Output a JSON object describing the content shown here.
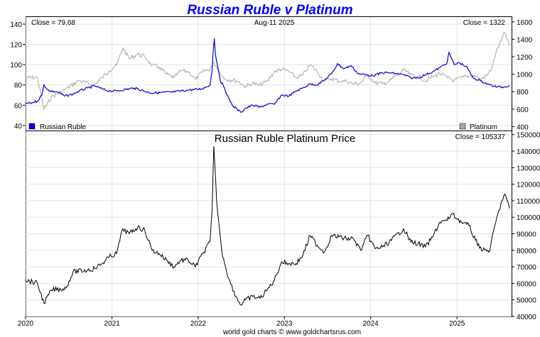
{
  "title": "Russian Ruble v Platinum",
  "footer": "world gold charts © www.goldchartsrus.com",
  "colors": {
    "ruble": "#0000dd",
    "platinum": "#a8a8a8",
    "price": "#000000",
    "title": "#0000ff",
    "grid": "#e2e2e2"
  },
  "chart_data": [
    {
      "type": "line",
      "title": "Russian Ruble v Platinum",
      "header": {
        "left": "Close = 79.68",
        "center": "Aug-11  2025",
        "right": "Close = 1322"
      },
      "x_ticks": [
        "2020",
        "2021",
        "2022",
        "2023",
        "2024",
        "2025"
      ],
      "y_left": {
        "ticks": [
          40,
          60,
          80,
          100,
          120,
          140
        ],
        "lim": [
          35,
          147
        ]
      },
      "y_right": {
        "ticks": [
          400,
          600,
          800,
          1000,
          1200,
          1400,
          1600
        ],
        "lim": [
          355,
          1655
        ]
      },
      "legend": "bottom-left and bottom-right",
      "grid": true,
      "series": [
        {
          "name": "Russian Ruble",
          "axis": "left",
          "points": [
            [
              "2020-01-01",
              62
            ],
            [
              "2020-01-20",
              62
            ],
            [
              "2020-02-20",
              64
            ],
            [
              "2020-03-10",
              70
            ],
            [
              "2020-03-19",
              80
            ],
            [
              "2020-04-10",
              74
            ],
            [
              "2020-05-15",
              73
            ],
            [
              "2020-06-15",
              69
            ],
            [
              "2020-07-20",
              71
            ],
            [
              "2020-08-15",
              74
            ],
            [
              "2020-09-20",
              77
            ],
            [
              "2020-10-20",
              79
            ],
            [
              "2020-11-20",
              76
            ],
            [
              "2020-12-20",
              74
            ],
            [
              "2021-01-20",
              74
            ],
            [
              "2021-04-05",
              77
            ],
            [
              "2021-06-15",
              72
            ],
            [
              "2021-09-15",
              73
            ],
            [
              "2021-11-25",
              75
            ],
            [
              "2022-01-15",
              76
            ],
            [
              "2022-02-20",
              80
            ],
            [
              "2022-03-01",
              95
            ],
            [
              "2022-03-05",
              112
            ],
            [
              "2022-03-10",
              126
            ],
            [
              "2022-03-15",
              110
            ],
            [
              "2022-03-25",
              98
            ],
            [
              "2022-04-05",
              84
            ],
            [
              "2022-04-20",
              78
            ],
            [
              "2022-05-10",
              67
            ],
            [
              "2022-05-25",
              60
            ],
            [
              "2022-06-15",
              56
            ],
            [
              "2022-06-30",
              53
            ],
            [
              "2022-07-20",
              57
            ],
            [
              "2022-08-20",
              60
            ],
            [
              "2022-09-20",
              58
            ],
            [
              "2022-10-20",
              61
            ],
            [
              "2022-11-20",
              61
            ],
            [
              "2022-12-20",
              70
            ],
            [
              "2023-01-20",
              69
            ],
            [
              "2023-02-20",
              74
            ],
            [
              "2023-03-20",
              77
            ],
            [
              "2023-04-20",
              81
            ],
            [
              "2023-05-20",
              80
            ],
            [
              "2023-06-20",
              85
            ],
            [
              "2023-07-20",
              91
            ],
            [
              "2023-08-14",
              101
            ],
            [
              "2023-09-10",
              96
            ],
            [
              "2023-10-10",
              99
            ],
            [
              "2023-11-10",
              91
            ],
            [
              "2023-12-10",
              90
            ],
            [
              "2024-01-10",
              89
            ],
            [
              "2024-02-20",
              92
            ],
            [
              "2024-03-20",
              92
            ],
            [
              "2024-05-20",
              90
            ],
            [
              "2024-06-20",
              87
            ],
            [
              "2024-07-20",
              87
            ],
            [
              "2024-08-20",
              90
            ],
            [
              "2024-09-20",
              93
            ],
            [
              "2024-10-20",
              97
            ],
            [
              "2024-11-20",
              102
            ],
            [
              "2024-11-28",
              112
            ],
            [
              "2024-12-20",
              100
            ],
            [
              "2025-01-10",
              102
            ],
            [
              "2025-02-10",
              98
            ],
            [
              "2025-03-10",
              87
            ],
            [
              "2025-04-10",
              84
            ],
            [
              "2025-05-20",
              80
            ],
            [
              "2025-06-20",
              78
            ],
            [
              "2025-07-20",
              78
            ],
            [
              "2025-08-11",
              79.68
            ]
          ]
        },
        {
          "name": "Platinum",
          "axis": "right",
          "points": [
            [
              "2020-01-01",
              960
            ],
            [
              "2020-02-20",
              960
            ],
            [
              "2020-03-19",
              600
            ],
            [
              "2020-04-20",
              740
            ],
            [
              "2020-06-15",
              820
            ],
            [
              "2020-08-15",
              930
            ],
            [
              "2020-10-15",
              870
            ],
            [
              "2020-11-20",
              960
            ],
            [
              "2020-12-20",
              1040
            ],
            [
              "2021-01-20",
              1100
            ],
            [
              "2021-02-16",
              1300
            ],
            [
              "2021-03-15",
              1180
            ],
            [
              "2021-04-20",
              1230
            ],
            [
              "2021-05-20",
              1200
            ],
            [
              "2021-06-20",
              1100
            ],
            [
              "2021-07-20",
              1080
            ],
            [
              "2021-08-20",
              1000
            ],
            [
              "2021-09-20",
              960
            ],
            [
              "2021-10-20",
              1040
            ],
            [
              "2021-11-20",
              1030
            ],
            [
              "2021-12-20",
              940
            ],
            [
              "2022-01-20",
              1030
            ],
            [
              "2022-02-20",
              1060
            ],
            [
              "2022-03-08",
              1140
            ],
            [
              "2022-04-20",
              950
            ],
            [
              "2022-06-20",
              920
            ],
            [
              "2022-07-20",
              860
            ],
            [
              "2022-08-20",
              900
            ],
            [
              "2022-09-15",
              870
            ],
            [
              "2022-10-20",
              920
            ],
            [
              "2022-11-20",
              1030
            ],
            [
              "2022-12-20",
              1060
            ],
            [
              "2023-01-20",
              1030
            ],
            [
              "2023-02-20",
              960
            ],
            [
              "2023-03-20",
              990
            ],
            [
              "2023-04-20",
              1110
            ],
            [
              "2023-05-20",
              1030
            ],
            [
              "2023-06-20",
              920
            ],
            [
              "2023-07-20",
              950
            ],
            [
              "2023-08-20",
              920
            ],
            [
              "2023-09-20",
              920
            ],
            [
              "2023-10-20",
              890
            ],
            [
              "2023-11-20",
              900
            ],
            [
              "2023-12-20",
              990
            ],
            [
              "2024-01-20",
              900
            ],
            [
              "2024-02-20",
              890
            ],
            [
              "2024-03-20",
              920
            ],
            [
              "2024-05-20",
              1050
            ],
            [
              "2024-06-20",
              990
            ],
            [
              "2024-07-20",
              980
            ],
            [
              "2024-08-20",
              920
            ],
            [
              "2024-09-20",
              970
            ],
            [
              "2024-10-20",
              1010
            ],
            [
              "2024-11-20",
              960
            ],
            [
              "2024-12-20",
              930
            ],
            [
              "2025-01-20",
              960
            ],
            [
              "2025-02-20",
              980
            ],
            [
              "2025-03-20",
              980
            ],
            [
              "2025-04-10",
              940
            ],
            [
              "2025-05-10",
              990
            ],
            [
              "2025-05-28",
              1070
            ],
            [
              "2025-06-15",
              1250
            ],
            [
              "2025-07-10",
              1400
            ],
            [
              "2025-07-22",
              1480
            ],
            [
              "2025-08-11",
              1322
            ]
          ]
        }
      ]
    },
    {
      "type": "line",
      "title": "Russian Ruble Platinum Price",
      "header": {
        "right": "Close = 105337"
      },
      "x_ticks": [
        "2020",
        "2021",
        "2022",
        "2023",
        "2024",
        "2025"
      ],
      "y_right": {
        "ticks": [
          40000,
          50000,
          60000,
          70000,
          80000,
          90000,
          100000,
          110000,
          120000,
          130000,
          140000,
          150000
        ],
        "lim": [
          40000,
          152000
        ]
      },
      "grid": true,
      "series": [
        {
          "name": "Russian Ruble Platinum Price",
          "points": [
            [
              "2020-01-01",
              62000
            ],
            [
              "2020-02-20",
              60000
            ],
            [
              "2020-03-19",
              48000
            ],
            [
              "2020-04-20",
              56000
            ],
            [
              "2020-06-20",
              57000
            ],
            [
              "2020-07-20",
              67000
            ],
            [
              "2020-09-20",
              68000
            ],
            [
              "2020-10-20",
              69000
            ],
            [
              "2020-11-20",
              72000
            ],
            [
              "2020-12-20",
              76000
            ],
            [
              "2021-01-20",
              78000
            ],
            [
              "2021-02-16",
              93000
            ],
            [
              "2021-03-15",
              90000
            ],
            [
              "2021-04-20",
              94000
            ],
            [
              "2021-05-20",
              92000
            ],
            [
              "2021-06-20",
              80000
            ],
            [
              "2021-07-20",
              78000
            ],
            [
              "2021-08-20",
              74000
            ],
            [
              "2021-09-20",
              70000
            ],
            [
              "2021-10-20",
              74000
            ],
            [
              "2021-11-20",
              74000
            ],
            [
              "2021-12-20",
              70000
            ],
            [
              "2022-01-20",
              78000
            ],
            [
              "2022-02-20",
              85000
            ],
            [
              "2022-03-01",
              105000
            ],
            [
              "2022-03-08",
              143000
            ],
            [
              "2022-03-20",
              110000
            ],
            [
              "2022-04-10",
              80000
            ],
            [
              "2022-05-10",
              63000
            ],
            [
              "2022-06-10",
              52000
            ],
            [
              "2022-07-01",
              47000
            ],
            [
              "2022-07-20",
              50000
            ],
            [
              "2022-08-20",
              52000
            ],
            [
              "2022-09-20",
              51000
            ],
            [
              "2022-10-20",
              56000
            ],
            [
              "2022-11-20",
              62000
            ],
            [
              "2022-12-20",
              73000
            ],
            [
              "2023-01-20",
              72000
            ],
            [
              "2023-02-20",
              72000
            ],
            [
              "2023-03-20",
              77000
            ],
            [
              "2023-04-20",
              89000
            ],
            [
              "2023-05-20",
              83000
            ],
            [
              "2023-06-20",
              79000
            ],
            [
              "2023-07-20",
              89000
            ],
            [
              "2023-08-20",
              88000
            ],
            [
              "2023-09-20",
              87000
            ],
            [
              "2023-10-20",
              87000
            ],
            [
              "2023-11-20",
              80000
            ],
            [
              "2023-12-20",
              89000
            ],
            [
              "2024-01-20",
              81000
            ],
            [
              "2024-02-20",
              82000
            ],
            [
              "2024-03-20",
              85000
            ],
            [
              "2024-05-20",
              93000
            ],
            [
              "2024-06-20",
              85000
            ],
            [
              "2024-07-20",
              84000
            ],
            [
              "2024-08-20",
              82000
            ],
            [
              "2024-09-20",
              88000
            ],
            [
              "2024-10-20",
              97000
            ],
            [
              "2024-11-20",
              98000
            ],
            [
              "2024-12-10",
              102000
            ],
            [
              "2025-01-20",
              97000
            ],
            [
              "2025-02-20",
              95000
            ],
            [
              "2025-03-20",
              86000
            ],
            [
              "2025-04-20",
              80000
            ],
            [
              "2025-05-20",
              80000
            ],
            [
              "2025-06-10",
              95000
            ],
            [
              "2025-07-10",
              110000
            ],
            [
              "2025-07-22",
              114000
            ],
            [
              "2025-08-11",
              105337
            ]
          ]
        }
      ]
    }
  ]
}
